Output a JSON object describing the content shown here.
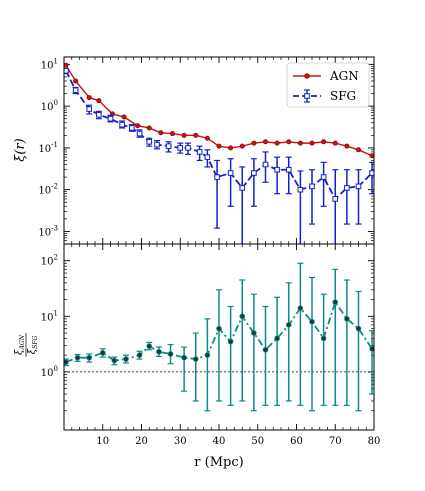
{
  "chart_data": [
    {
      "type": "line",
      "panel": "top",
      "ylabel": "ξ(r)",
      "yscale": "log",
      "ylim": [
        0.0005,
        15
      ],
      "xlim": [
        0,
        80
      ],
      "yticks": [
        {
          "value": 10,
          "label": "10",
          "exp": "1"
        },
        {
          "value": 1,
          "label": "10",
          "exp": "0"
        },
        {
          "value": 0.1,
          "label": "10",
          "exp": "-1"
        },
        {
          "value": 0.01,
          "label": "10",
          "exp": "-2"
        },
        {
          "value": 0.001,
          "label": "10",
          "exp": "-3"
        }
      ],
      "legend": "top-right",
      "series": [
        {
          "name": "AGN",
          "color": "#cc1111",
          "style": "solid",
          "marker": "circle",
          "x": [
            0.5,
            3,
            6.5,
            9,
            12.5,
            15.5,
            19,
            22,
            25,
            28,
            31,
            34,
            37,
            40,
            43,
            46,
            49,
            52,
            55,
            58,
            61,
            64,
            67,
            70,
            73,
            76,
            79.5
          ],
          "y": [
            9.5,
            4.0,
            1.6,
            1.35,
            0.65,
            0.55,
            0.34,
            0.3,
            0.23,
            0.22,
            0.2,
            0.2,
            0.17,
            0.11,
            0.1,
            0.11,
            0.13,
            0.14,
            0.13,
            0.14,
            0.13,
            0.13,
            0.14,
            0.13,
            0.11,
            0.09,
            0.065
          ]
        },
        {
          "name": "SFG",
          "color": "#1122cc",
          "style": "dashed",
          "marker": "square-open",
          "x": [
            0.5,
            3,
            6.5,
            9,
            12,
            15,
            17.5,
            19.5,
            22,
            24,
            27,
            30,
            32,
            35,
            37,
            39.5,
            43,
            46,
            49,
            52,
            55,
            58,
            61,
            64,
            67,
            70,
            73,
            76,
            79.5
          ],
          "y": [
            7.0,
            2.4,
            0.85,
            0.62,
            0.5,
            0.36,
            0.3,
            0.22,
            0.14,
            0.12,
            0.11,
            0.1,
            0.1,
            0.08,
            0.06,
            0.02,
            0.025,
            0.011,
            0.025,
            0.04,
            0.03,
            0.03,
            0.01,
            0.012,
            0.02,
            0.006,
            0.011,
            0.012,
            0.025
          ],
          "err_low": [
            6.5,
            2.0,
            0.65,
            0.5,
            0.42,
            0.3,
            0.25,
            0.18,
            0.11,
            0.095,
            0.08,
            0.075,
            0.07,
            0.05,
            0.035,
            0.0012,
            0.004,
            0.0004,
            0.004,
            0.015,
            0.008,
            0.008,
            0.0004,
            0.0015,
            0.004,
            0.0004,
            0.0015,
            0.0015,
            0.008
          ],
          "err_high": [
            7.6,
            2.8,
            1.05,
            0.75,
            0.6,
            0.44,
            0.36,
            0.27,
            0.17,
            0.15,
            0.14,
            0.13,
            0.13,
            0.11,
            0.09,
            0.05,
            0.055,
            0.035,
            0.055,
            0.08,
            0.06,
            0.06,
            0.028,
            0.03,
            0.045,
            0.03,
            0.03,
            0.03,
            0.045
          ]
        }
      ]
    },
    {
      "type": "line",
      "panel": "bottom",
      "ylabel": "ξAGN/ξSFG",
      "ylabel_num": "ξ",
      "ylabel_num_sub": "AGN",
      "ylabel_den": "ξ",
      "ylabel_den_sub": "SFG",
      "xlabel": "r (Mpc)",
      "yscale": "log",
      "ylim": [
        0.09,
        200
      ],
      "xlim": [
        0,
        80
      ],
      "xticks": [
        {
          "value": 10,
          "label": "10"
        },
        {
          "value": 20,
          "label": "20"
        },
        {
          "value": 30,
          "label": "30"
        },
        {
          "value": 40,
          "label": "40"
        },
        {
          "value": 50,
          "label": "50"
        },
        {
          "value": 60,
          "label": "60"
        },
        {
          "value": 70,
          "label": "70"
        },
        {
          "value": 80,
          "label": "80"
        }
      ],
      "yticks": [
        {
          "value": 100,
          "label": "10",
          "exp": "2"
        },
        {
          "value": 10,
          "label": "10",
          "exp": "1"
        },
        {
          "value": 1,
          "label": "10",
          "exp": "0"
        }
      ],
      "reference_line": 1,
      "series": [
        {
          "color": "#0e8a8a",
          "style": "dashdot",
          "marker": "circle",
          "x": [
            0.5,
            3.5,
            6.5,
            10,
            13,
            16,
            19.5,
            22,
            24.5,
            27.5,
            31,
            34,
            37,
            40,
            43,
            46,
            49,
            52,
            55,
            58,
            61,
            64,
            67,
            70,
            73,
            76,
            79.5
          ],
          "y": [
            1.5,
            1.8,
            1.8,
            2.2,
            1.6,
            1.7,
            2.0,
            2.9,
            2.3,
            2.1,
            1.8,
            1.7,
            2.0,
            6.0,
            3.5,
            10.0,
            5.0,
            2.5,
            4.0,
            7.0,
            14.0,
            8.0,
            4.0,
            18.0,
            9.0,
            6.0,
            2.6
          ],
          "err_low": [
            1.3,
            1.55,
            1.5,
            1.85,
            1.35,
            1.45,
            1.7,
            2.5,
            1.9,
            1.4,
            0.45,
            0.3,
            0.2,
            0.3,
            0.25,
            0.3,
            0.2,
            0.25,
            0.25,
            0.3,
            0.25,
            0.2,
            0.25,
            0.25,
            0.25,
            0.2,
            0.4
          ],
          "err_high": [
            1.7,
            2.05,
            2.1,
            2.6,
            1.85,
            2.0,
            2.35,
            3.4,
            2.8,
            3.1,
            2.8,
            5.0,
            9.0,
            30.0,
            15.0,
            45.0,
            25.0,
            15.0,
            22.0,
            40.0,
            90.0,
            50.0,
            25.0,
            70.0,
            45.0,
            28.0,
            5.5
          ]
        }
      ]
    }
  ]
}
